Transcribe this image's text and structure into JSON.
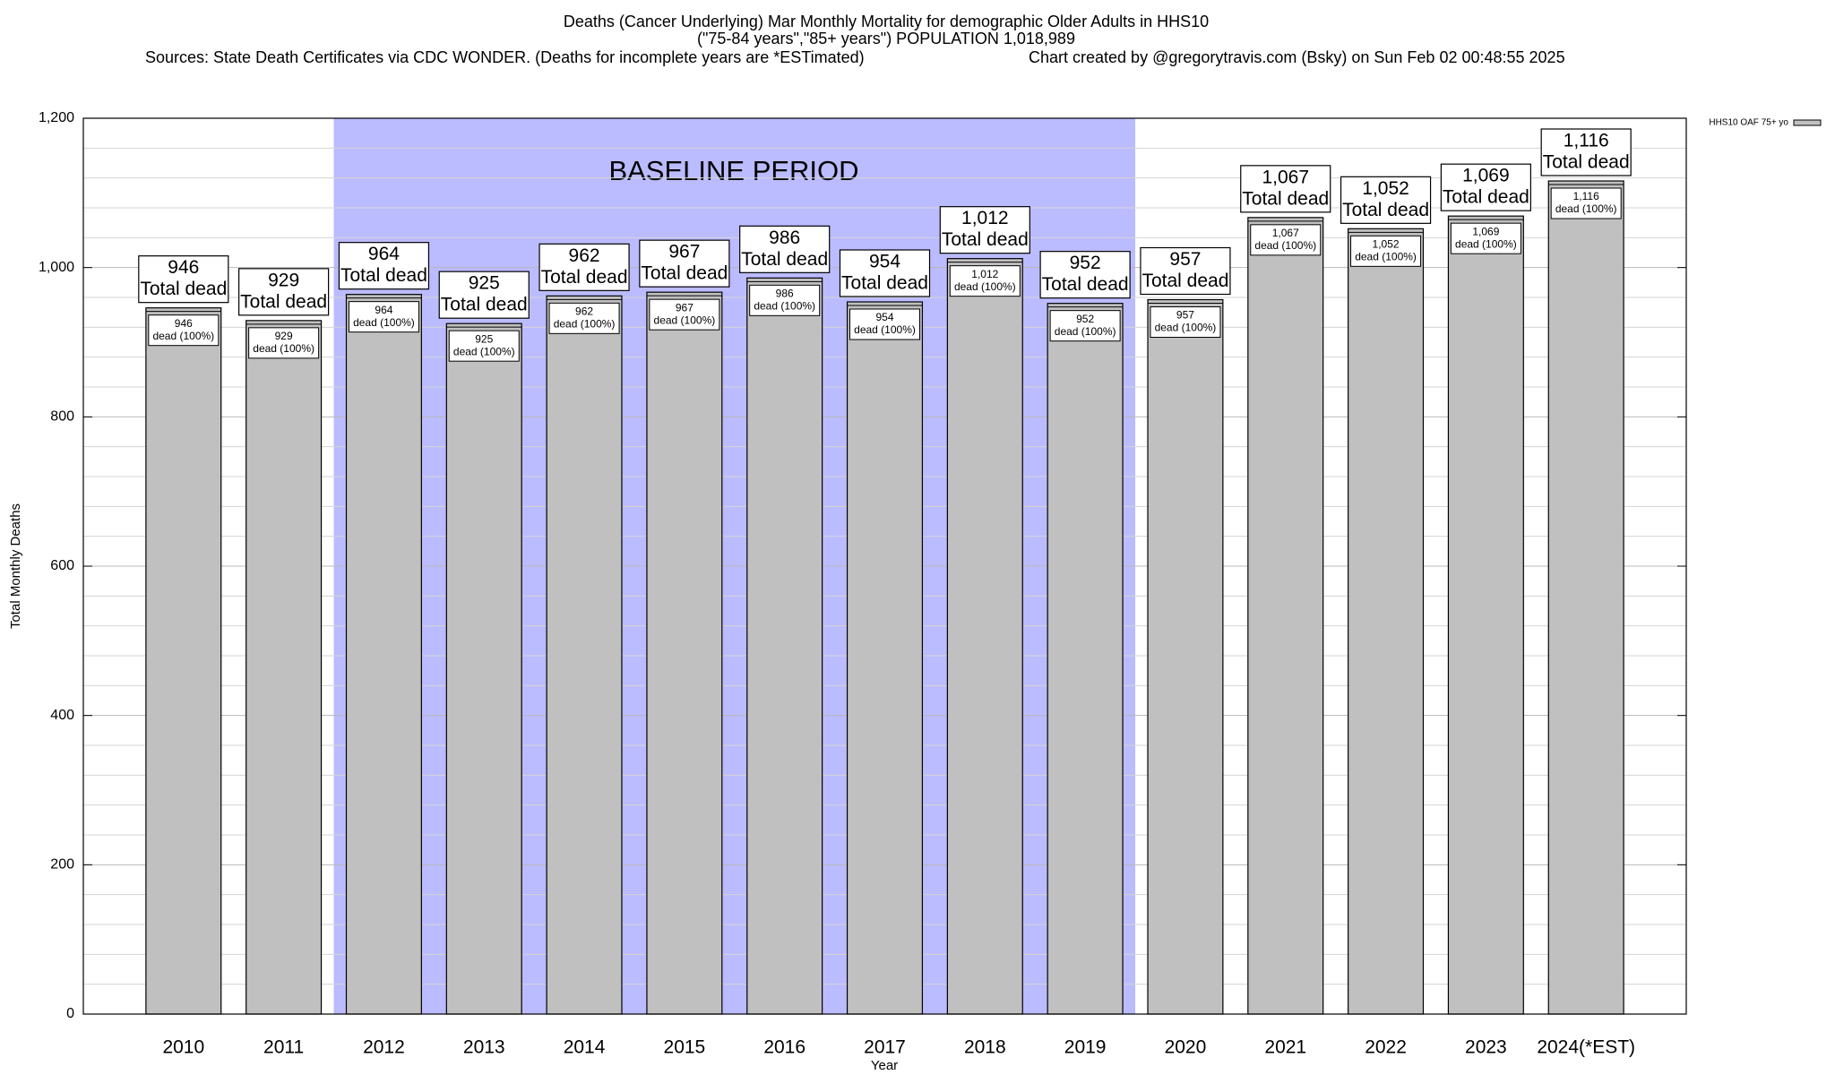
{
  "chart_data": {
    "type": "bar",
    "title": "Deaths (Cancer Underlying) Mar Monthly Mortality for demographic Older Adults in HHS10",
    "subtitle": "(\"75-84 years\",\"85+ years\") POPULATION 1,018,989",
    "sources": "Sources: State Death Certificates via CDC WONDER. (Deaths for incomplete years are *ESTimated)",
    "credit": "Chart created by @gregorytravis.com (Bsky) on Sun Feb 02 00:48:55 2025",
    "x_label": "Year",
    "y_label": "Total Monthly Deaths",
    "categories": [
      "2010",
      "2011",
      "2012",
      "2013",
      "2014",
      "2015",
      "2016",
      "2017",
      "2018",
      "2019",
      "2020",
      "2021",
      "2022",
      "2023",
      "2024(*EST)"
    ],
    "series": [
      {
        "name": "HHS10 OAF 75+ yo",
        "color": "#c0c0c0",
        "values": [
          946,
          929,
          964,
          925,
          962,
          967,
          986,
          954,
          1012,
          952,
          957,
          1067,
          1052,
          1069,
          1116
        ],
        "value_labels": [
          "946",
          "929",
          "964",
          "925",
          "962",
          "967",
          "986",
          "954",
          "1,012",
          "952",
          "957",
          "1,067",
          "1,052",
          "1,069",
          "1,116"
        ]
      }
    ],
    "total_label": "Total dead",
    "inner_label": "dead (100%)",
    "shaded_region": {
      "label": "BASELINE PERIOD",
      "from": "2012",
      "to": "2019",
      "color": "#bbbbff"
    },
    "ylim": [
      0,
      1200
    ],
    "yticks": [
      0,
      200,
      400,
      600,
      800,
      {
        "value": 1000,
        "label": "1,000"
      },
      {
        "value": 1200,
        "label": "1,200"
      }
    ],
    "minor_yticks": [
      40,
      80,
      120,
      160,
      240,
      280,
      320,
      360,
      440,
      480,
      520,
      560,
      640,
      680,
      720,
      760,
      840,
      880,
      920,
      960,
      1040,
      1080,
      1120,
      1160
    ],
    "grid": true,
    "legend": "top-right"
  }
}
